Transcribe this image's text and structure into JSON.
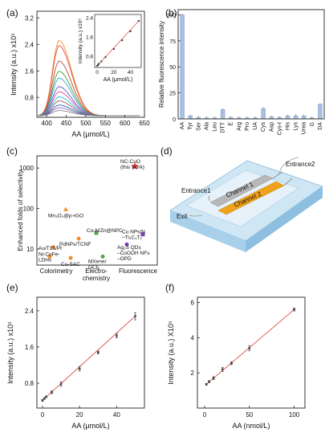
{
  "panel_labels": [
    "(a)",
    "(b)",
    "(c)",
    "(d)",
    "(e)",
    "(f)"
  ],
  "colors": {
    "fit_line": "#e0483f",
    "bar": "#a9bfe1",
    "orange": "#f28e2b",
    "green": "#59a14f",
    "purple": "#7a3fb0",
    "red": "#e03030"
  },
  "chart_data": [
    {
      "id": "a",
      "type": "line",
      "xlabel": "AA (μmol/L)",
      "ylabel": "Intensity (a.u.) x10⁵",
      "xlim": [
        375,
        650
      ],
      "ylim": [
        0.2,
        3.4
      ],
      "x_ticks": [
        400,
        450,
        500,
        550,
        600,
        650
      ],
      "y_ticks": [
        "0.8",
        "1.6",
        "2.4",
        "3.2"
      ],
      "y_tick_values": [
        0.8,
        1.6,
        2.4,
        3.2
      ],
      "series": [
        {
          "peak": 2.45,
          "color": "#f28e2b"
        },
        {
          "peak": 2.3,
          "color": "#e0483f"
        },
        {
          "peak": 1.85,
          "color": "#c0463a"
        },
        {
          "peak": 1.55,
          "color": "#2ca02c"
        },
        {
          "peak": 1.35,
          "color": "#3aa3d6"
        },
        {
          "peak": 1.1,
          "color": "#6a4bc4"
        },
        {
          "peak": 0.95,
          "color": "#d64ca0"
        },
        {
          "peak": 0.8,
          "color": "#17becf"
        },
        {
          "peak": 0.68,
          "color": "#8c564b"
        },
        {
          "peak": 0.56,
          "color": "#1f5fb4"
        },
        {
          "peak": 0.48,
          "color": "#9467bd"
        },
        {
          "peak": 0.4,
          "color": "#7f7f7f"
        }
      ],
      "inset": {
        "xlabel": "AA (μmol/L)",
        "ylabel": "Intensity (a.u.) x10⁵",
        "x_ticks": [
          "0",
          "20",
          "40"
        ],
        "x_tick_values": [
          0,
          20,
          40
        ],
        "y_ticks": [
          "0.8",
          "1.6",
          "2.4"
        ],
        "y_tick_values": [
          0.8,
          1.6,
          2.4
        ],
        "xlim": [
          -3,
          53
        ],
        "ylim": [
          0.35,
          2.55
        ],
        "x": [
          0,
          1,
          2,
          5,
          10,
          20,
          30,
          40,
          50
        ],
        "y": [
          0.42,
          0.46,
          0.5,
          0.6,
          0.78,
          1.12,
          1.48,
          1.85,
          2.28
        ]
      }
    },
    {
      "id": "b",
      "type": "bar",
      "ylabel": "Relative fluorescence intensity",
      "ylim": [
        0,
        105
      ],
      "y_ticks": [
        "0",
        "25",
        "50",
        "75",
        "100"
      ],
      "y_tick_values": [
        0,
        25,
        50,
        75,
        100
      ],
      "categories": [
        "AA",
        "Tyr",
        "Ser",
        "Ala",
        "Leu",
        "DTT",
        "E",
        "Arg",
        "Pro",
        "UA",
        "Cys",
        "Asp",
        "Cys-t",
        "His",
        "Lys",
        "Urea",
        "G",
        "DA"
      ],
      "values": [
        100,
        3,
        1.5,
        1,
        1,
        9,
        1.5,
        1,
        1,
        1,
        10,
        2,
        1.5,
        3,
        3,
        3,
        1,
        14
      ]
    },
    {
      "id": "c",
      "type": "scatter",
      "ylabel": "Enhanced folds of selectivity",
      "y_ticks": [
        "10",
        "100",
        "1000"
      ],
      "y_tick_values": [
        10,
        100,
        1000
      ],
      "ylim": [
        4,
        2000
      ],
      "groups": [
        "Colorimetry",
        "Electro-\nchemistry",
        "Fluorescence"
      ],
      "points": [
        {
          "label": "NC-CuO\n(this work)",
          "group": "Fluorescence",
          "y": 1100,
          "color": "#e03030",
          "marker": "star"
        },
        {
          "label": "Mn₃O₄@p-rGO",
          "group": "Colorimetry",
          "y": 95,
          "color": "#f28e2b",
          "marker": "triangle"
        },
        {
          "label": "Co-N/Zn@NPC",
          "group": "Electrochemistry",
          "y": 25,
          "color": "#59a14f",
          "marker": "square"
        },
        {
          "label": "PdNPs/TCNF",
          "group": "Colorimetry",
          "y": 18,
          "color": "#f28e2b",
          "marker": "circle"
        },
        {
          "label": "Au/T15/Pt",
          "group": "Colorimetry",
          "y": 11,
          "color": "#f28e2b",
          "marker": "circle"
        },
        {
          "label": "Ni-CoFe-\nLDHs",
          "group": "Colorimetry",
          "y": 6.5,
          "color": "#f28e2b",
          "marker": "circle"
        },
        {
          "label": "Cu-SAC",
          "group": "Colorimetry",
          "y": 6,
          "color": "#f28e2b",
          "marker": "circle"
        },
        {
          "label": "MXene/\nGCE",
          "group": "Electrochemistry",
          "y": 6.5,
          "color": "#59a14f",
          "marker": "circle"
        },
        {
          "label": "Cu NPs/N\n–Ti₃C₂Tₓ",
          "group": "Fluorescence",
          "y": 23,
          "color": "#7a3fb0",
          "marker": "square"
        },
        {
          "label": "Ag₂S QDs\n–CoOOH NFs\n–OPD",
          "group": "Fluorescence",
          "y": 13,
          "color": "#7a3fb0",
          "marker": "circle"
        }
      ]
    },
    {
      "id": "e",
      "type": "scatter",
      "xlabel": "AA (μmol/L)",
      "ylabel": "Intensity (a.u.) x10⁵",
      "xlim": [
        -3,
        55
      ],
      "ylim": [
        0.25,
        2.7
      ],
      "x_ticks": [
        "0",
        "20",
        "40"
      ],
      "x_tick_values": [
        0,
        20,
        40
      ],
      "y_ticks": [
        "0.8",
        "1.6",
        "2.4"
      ],
      "y_tick_values": [
        0.8,
        1.6,
        2.4
      ],
      "x": [
        0,
        1,
        2,
        5,
        10,
        20,
        30,
        40,
        50
      ],
      "y": [
        0.42,
        0.46,
        0.5,
        0.6,
        0.78,
        1.12,
        1.48,
        1.85,
        2.28
      ],
      "err": [
        0.02,
        0.02,
        0.02,
        0.03,
        0.05,
        0.05,
        0.03,
        0.05,
        0.08
      ]
    },
    {
      "id": "f",
      "type": "scatter",
      "xlabel": "AA (nmol/L)",
      "ylabel": "Intensity (a.u.) X10⁵",
      "xlim": [
        -8,
        112
      ],
      "ylim": [
        0,
        6.3
      ],
      "x_ticks": [
        "0",
        "50",
        "100"
      ],
      "x_tick_values": [
        0,
        50,
        100
      ],
      "y_ticks": [
        "2",
        "4",
        "6"
      ],
      "y_tick_values": [
        2,
        4,
        6
      ],
      "x": [
        2,
        5,
        10,
        20,
        30,
        50,
        100
      ],
      "y": [
        1.35,
        1.5,
        1.7,
        2.2,
        2.55,
        3.4,
        5.6
      ],
      "err": [
        0.05,
        0.06,
        0.08,
        0.12,
        0.08,
        0.15,
        0.08
      ]
    }
  ],
  "diagram_d": {
    "labels": {
      "entrance1": "Entrance1",
      "entrance2": "Entrance2",
      "exit": "Exit",
      "channel1": "Channel 1",
      "channel2": "Channel 2"
    }
  }
}
